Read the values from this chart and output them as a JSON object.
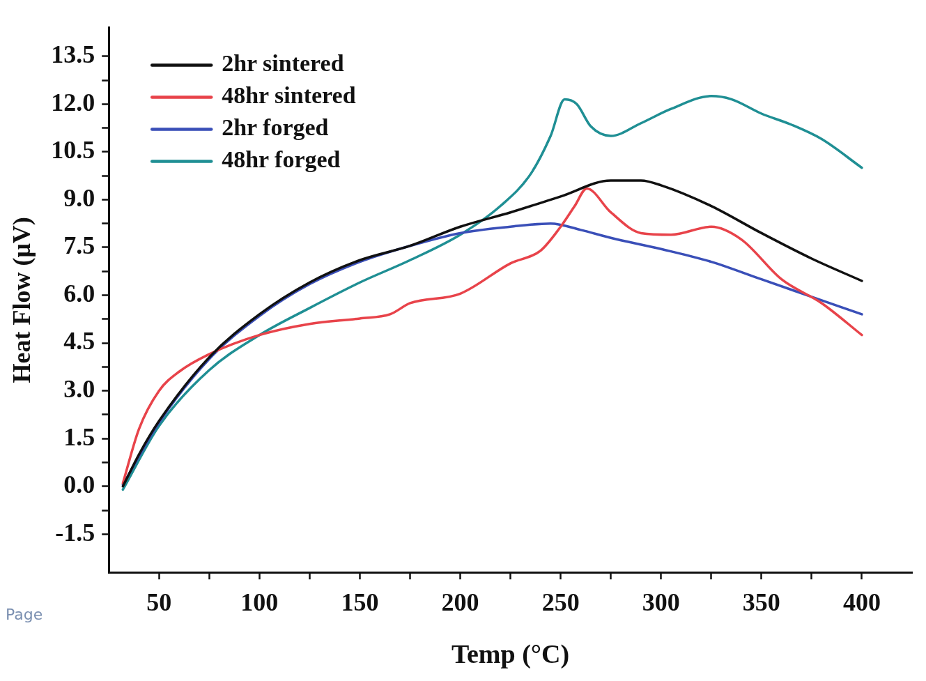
{
  "chart_data": {
    "type": "line",
    "xlabel": "Temp (°C)",
    "ylabel": "Heat Flow (μV)",
    "annotations": [
      "Page"
    ],
    "xlim": [
      25,
      425
    ],
    "ylim": [
      -2.7,
      14.4
    ],
    "xticks": [
      50,
      {
        "value": 75,
        "label": null
      },
      100,
      {
        "value": 125,
        "label": null
      },
      150,
      {
        "value": 175,
        "label": null
      },
      200,
      {
        "value": 225,
        "label": null
      },
      250,
      {
        "value": 275,
        "label": null
      },
      300,
      {
        "value": 325,
        "label": null
      },
      350,
      {
        "value": 375,
        "label": null
      },
      400
    ],
    "yticks": [
      {
        "value": -1.5,
        "label": "-1.5"
      },
      {
        "value": -0.75,
        "label": null
      },
      {
        "value": 0,
        "label": "0.0"
      },
      {
        "value": 0.75,
        "label": null
      },
      {
        "value": 1.5,
        "label": "1.5"
      },
      {
        "value": 2.25,
        "label": null
      },
      {
        "value": 3,
        "label": "3.0"
      },
      {
        "value": 3.75,
        "label": null
      },
      {
        "value": 4.5,
        "label": "4.5"
      },
      {
        "value": 5.25,
        "label": null
      },
      {
        "value": 6,
        "label": "6.0"
      },
      {
        "value": 6.75,
        "label": null
      },
      {
        "value": 7.5,
        "label": "7.5"
      },
      {
        "value": 8.25,
        "label": null
      },
      {
        "value": 9,
        "label": "9.0"
      },
      {
        "value": 9.75,
        "label": null
      },
      {
        "value": 10.5,
        "label": "10.5"
      },
      {
        "value": 11.25,
        "label": null
      },
      {
        "value": 12,
        "label": "12.0"
      },
      {
        "value": 12.75,
        "label": null
      },
      {
        "value": 13.5,
        "label": "13.5"
      }
    ],
    "grid": false,
    "legend": "top left",
    "marker": "none",
    "line_style": "solid",
    "series": [
      {
        "name": "2hr sintered",
        "color": "#111111",
        "x": [
          32,
          40,
          50,
          75,
          100,
          125,
          150,
          175,
          200,
          225,
          250,
          275,
          290,
          300,
          325,
          350,
          375,
          400
        ],
        "values": [
          0,
          1,
          2.05,
          4.05,
          5.4,
          6.4,
          7.1,
          7.55,
          8.15,
          8.6,
          9.1,
          9.6,
          9.6,
          9.45,
          8.8,
          7.95,
          7.15,
          6.45
        ]
      },
      {
        "name": "48hr sintered",
        "color": "#e8434a",
        "x": [
          32,
          40,
          50,
          60,
          75,
          100,
          125,
          150,
          165,
          175,
          200,
          225,
          240,
          250,
          257,
          263,
          275,
          290,
          305,
          325,
          340,
          360,
          380,
          400
        ],
        "values": [
          0.1,
          1.8,
          3,
          3.6,
          4.15,
          4.75,
          5.1,
          5.27,
          5.4,
          5.75,
          6.05,
          7,
          7.4,
          8.15,
          8.8,
          9.35,
          8.6,
          7.95,
          7.9,
          8.15,
          7.75,
          6.5,
          5.75,
          4.75
        ]
      },
      {
        "name": "2hr forged",
        "color": "#3a4fb8",
        "x": [
          32,
          50,
          75,
          100,
          125,
          150,
          175,
          200,
          225,
          245,
          260,
          275,
          300,
          325,
          350,
          375,
          400
        ],
        "values": [
          0.05,
          2,
          4,
          5.35,
          6.35,
          7.05,
          7.55,
          7.95,
          8.15,
          8.25,
          8.05,
          7.8,
          7.45,
          7.05,
          6.5,
          5.95,
          5.4
        ]
      },
      {
        "name": "48hr forged",
        "color": "#1f8f94",
        "x": [
          32,
          50,
          75,
          100,
          125,
          150,
          175,
          200,
          220,
          235,
          245,
          252,
          258,
          265,
          275,
          290,
          305,
          325,
          335,
          350,
          365,
          380,
          400
        ],
        "values": [
          -0.1,
          1.9,
          3.65,
          4.75,
          5.6,
          6.4,
          7.1,
          7.9,
          8.8,
          9.8,
          11,
          12.15,
          12,
          11.3,
          11,
          11.4,
          11.85,
          12.25,
          12.15,
          11.7,
          11.35,
          10.9,
          10
        ]
      }
    ]
  }
}
